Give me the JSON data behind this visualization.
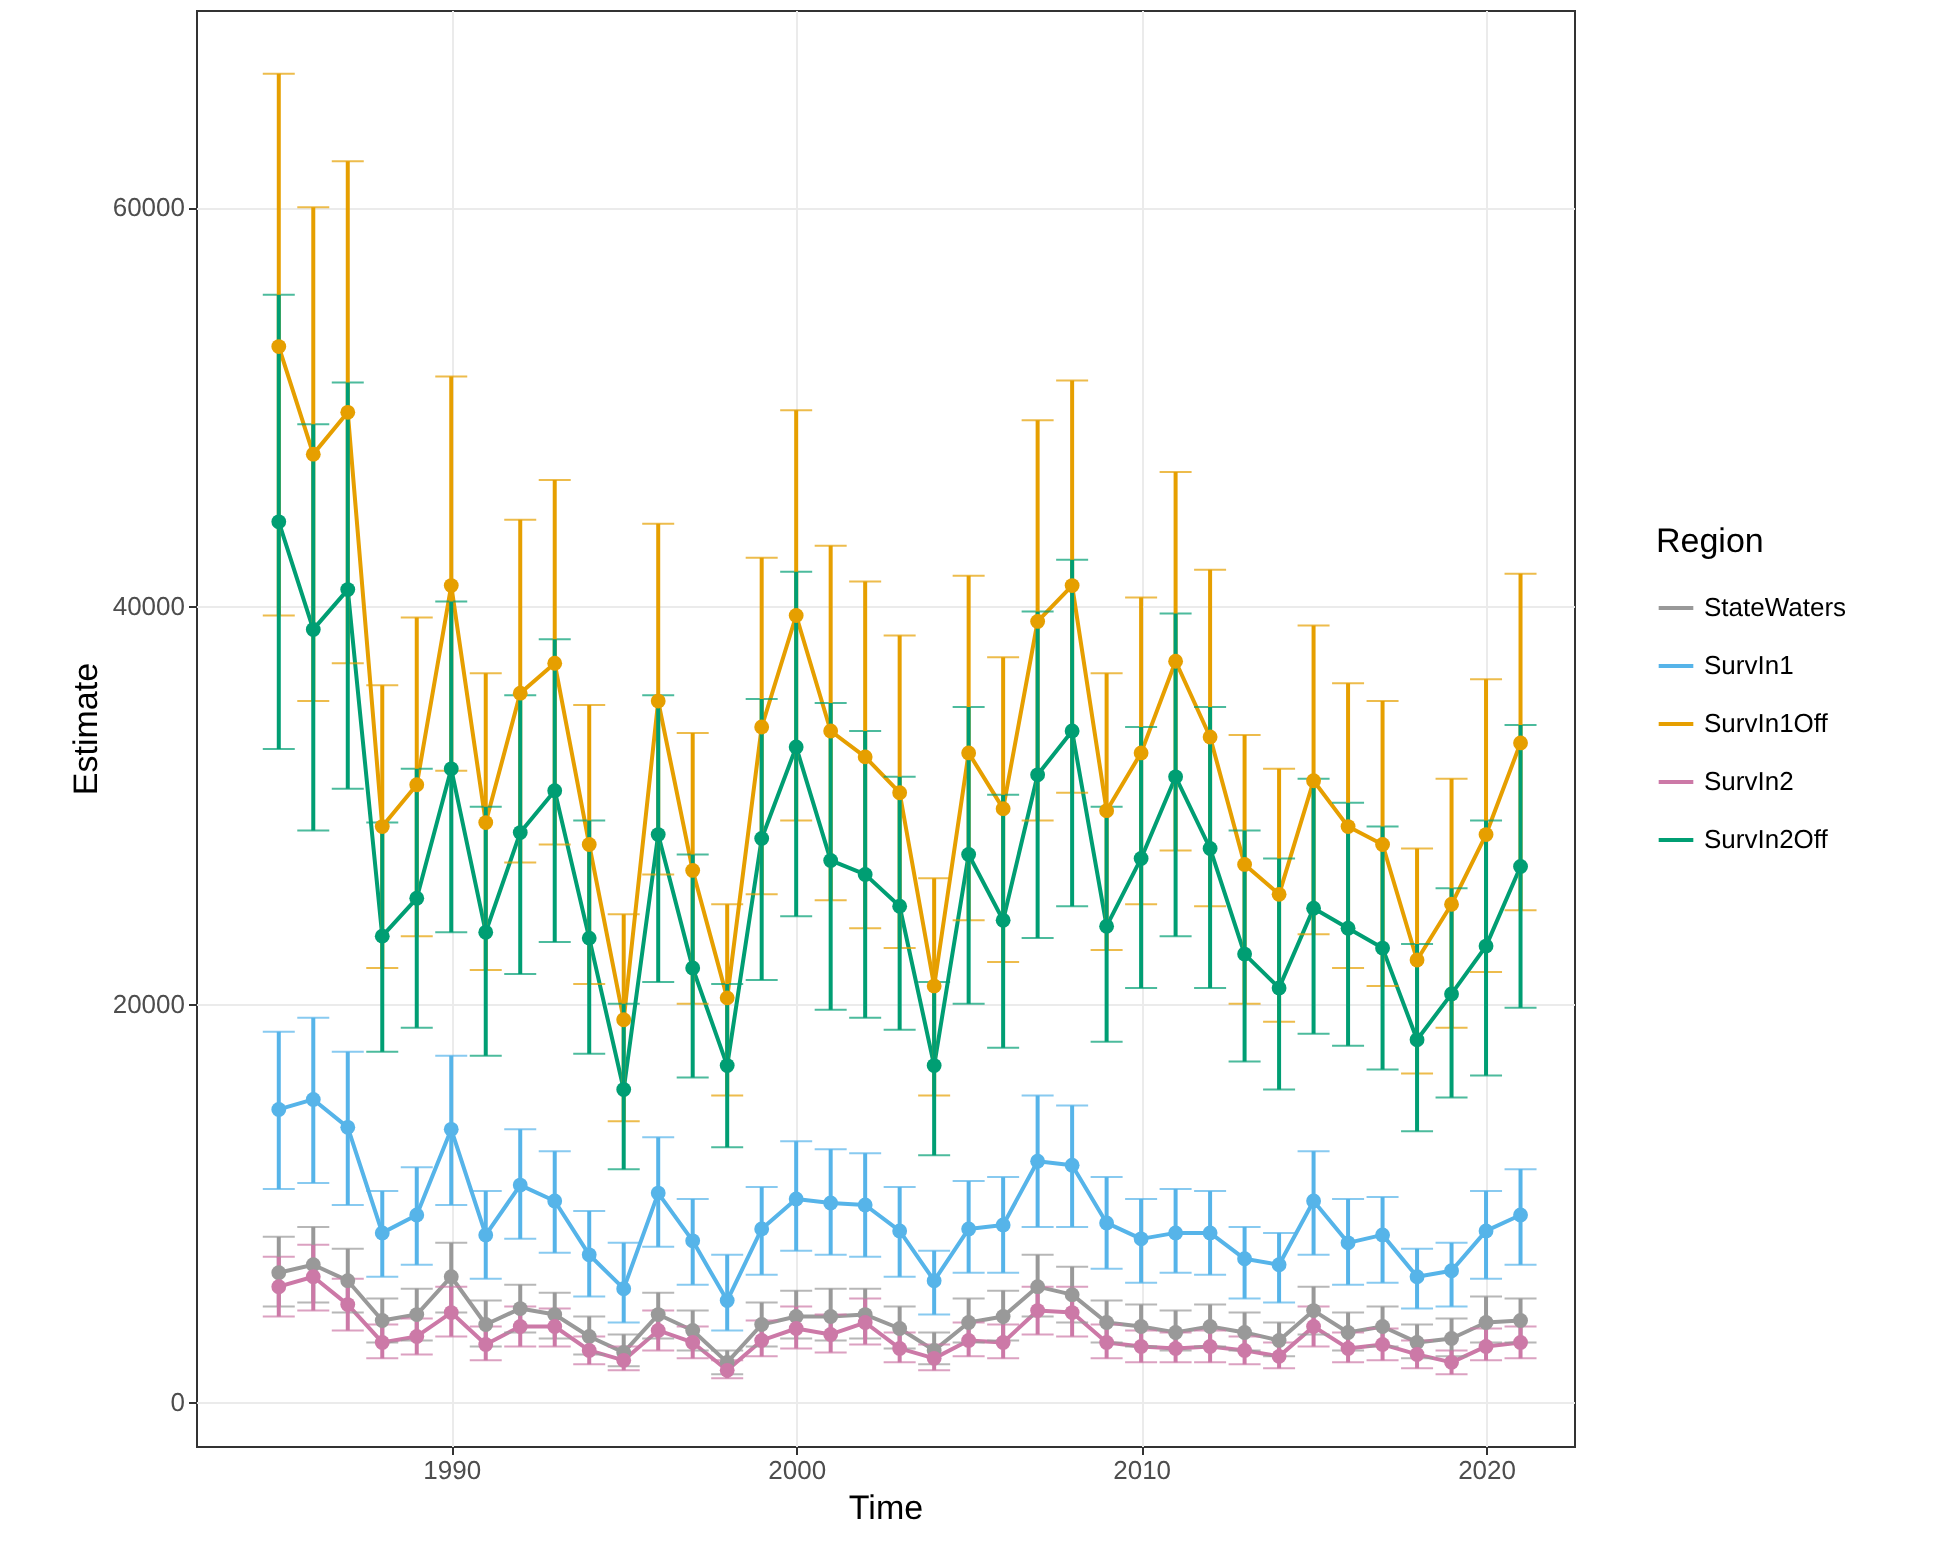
{
  "chart_data": {
    "type": "line",
    "xlabel": "Time",
    "ylabel": "Estimate",
    "legend_title": "Region",
    "legend": "right",
    "grid": true,
    "marker": "circle",
    "x": [
      1985,
      1986,
      1987,
      1988,
      1989,
      1990,
      1991,
      1992,
      1993,
      1994,
      1995,
      1996,
      1997,
      1998,
      1999,
      2000,
      2001,
      2002,
      2003,
      2004,
      2005,
      2006,
      2007,
      2008,
      2009,
      2010,
      2011,
      2012,
      2013,
      2014,
      2015,
      2016,
      2017,
      2018,
      2019,
      2020,
      2021
    ],
    "xlim": [
      1982.6,
      2022.55
    ],
    "xticks": [
      1990,
      2000,
      2010,
      2020
    ],
    "ylim": [
      -2200,
      69900
    ],
    "yticks": [
      0,
      20000,
      40000,
      60000
    ],
    "series": [
      {
        "name": "StateWaters",
        "color": "#999999",
        "values": [
          6500,
          6900,
          6100,
          4100,
          4400,
          6300,
          3900,
          4700,
          4400,
          3300,
          2500,
          4400,
          3600,
          2000,
          3900,
          4300,
          4300,
          4400,
          3700,
          2600,
          4000,
          4300,
          5800,
          5400,
          4000,
          3800,
          3500,
          3800,
          3500,
          3100,
          4600,
          3500,
          3800,
          3000,
          3200,
          4000,
          4100
        ],
        "errors": [
          [
            4800,
            8300
          ],
          [
            5000,
            8800
          ],
          [
            4500,
            7700
          ],
          [
            3000,
            5200
          ],
          [
            3100,
            5700
          ],
          [
            4500,
            8000
          ],
          [
            2800,
            5100
          ],
          [
            3500,
            5900
          ],
          [
            3200,
            5500
          ],
          [
            2400,
            4300
          ],
          [
            1800,
            3400
          ],
          [
            3200,
            5500
          ],
          [
            2600,
            4600
          ],
          [
            1400,
            2600
          ],
          [
            2800,
            5000
          ],
          [
            3200,
            5600
          ],
          [
            3100,
            5700
          ],
          [
            3200,
            5700
          ],
          [
            2700,
            4800
          ],
          [
            1900,
            3500
          ],
          [
            3000,
            5200
          ],
          [
            3100,
            5600
          ],
          [
            4300,
            7400
          ],
          [
            4000,
            6800
          ],
          [
            3000,
            5100
          ],
          [
            2800,
            4900
          ],
          [
            2600,
            4600
          ],
          [
            2800,
            4900
          ],
          [
            2600,
            4500
          ],
          [
            2300,
            4000
          ],
          [
            3400,
            5800
          ],
          [
            2600,
            4500
          ],
          [
            2800,
            4800
          ],
          [
            2200,
            3900
          ],
          [
            2300,
            4200
          ],
          [
            3000,
            5300
          ],
          [
            3000,
            5200
          ]
        ]
      },
      {
        "name": "SurvIn1",
        "color": "#56b4e9",
        "values": [
          14700,
          15200,
          13800,
          8500,
          9400,
          13700,
          8400,
          10900,
          10100,
          7400,
          5700,
          10500,
          8100,
          5100,
          8700,
          10200,
          10000,
          9900,
          8600,
          6100,
          8700,
          8900,
          12100,
          11900,
          9000,
          8200,
          8500,
          8500,
          7200,
          6900,
          10100,
          8000,
          8400,
          6300,
          6600,
          8600,
          9400
        ],
        "errors": [
          [
            10700,
            18600
          ],
          [
            11000,
            19300
          ],
          [
            9900,
            17600
          ],
          [
            6300,
            10600
          ],
          [
            6900,
            11800
          ],
          [
            9900,
            17400
          ],
          [
            6200,
            10600
          ],
          [
            8200,
            13700
          ],
          [
            7500,
            12600
          ],
          [
            5300,
            9600
          ],
          [
            4000,
            8000
          ],
          [
            7800,
            13300
          ],
          [
            5900,
            10200
          ],
          [
            3600,
            7400
          ],
          [
            6400,
            10800
          ],
          [
            7600,
            13100
          ],
          [
            7400,
            12700
          ],
          [
            7300,
            12500
          ],
          [
            6300,
            10800
          ],
          [
            4400,
            7600
          ],
          [
            6500,
            11100
          ],
          [
            6500,
            11300
          ],
          [
            8800,
            15400
          ],
          [
            8800,
            14900
          ],
          [
            6700,
            11300
          ],
          [
            6000,
            10200
          ],
          [
            6500,
            10700
          ],
          [
            6400,
            10600
          ],
          [
            5200,
            8800
          ],
          [
            5000,
            8500
          ],
          [
            7400,
            12600
          ],
          [
            5900,
            10200
          ],
          [
            6000,
            10300
          ],
          [
            4700,
            7700
          ],
          [
            4800,
            8000
          ],
          [
            6200,
            10600
          ],
          [
            6900,
            11700
          ]
        ]
      },
      {
        "name": "SurvIn1Off",
        "color": "#e69f00",
        "values": [
          53000,
          47600,
          49700,
          28900,
          31000,
          41000,
          29100,
          35600,
          37100,
          28000,
          19200,
          35200,
          26700,
          20300,
          33900,
          39500,
          33700,
          32400,
          30600,
          20900,
          32600,
          29800,
          39200,
          41000,
          29700,
          32600,
          37200,
          33400,
          27000,
          25500,
          31200,
          28900,
          28000,
          22200,
          25000,
          28500,
          33100
        ],
        "errors": [
          [
            39500,
            66700
          ],
          [
            35200,
            60000
          ],
          [
            37100,
            62300
          ],
          [
            21800,
            36000
          ],
          [
            23400,
            39400
          ],
          [
            31700,
            51500
          ],
          [
            21700,
            36600
          ],
          [
            27100,
            44300
          ],
          [
            28000,
            46300
          ],
          [
            21000,
            35000
          ],
          [
            14100,
            24500
          ],
          [
            26500,
            44100
          ],
          [
            20000,
            33600
          ],
          [
            15400,
            25000
          ],
          [
            25500,
            42400
          ],
          [
            29200,
            49800
          ],
          [
            25200,
            43000
          ],
          [
            23800,
            41200
          ],
          [
            22800,
            38500
          ],
          [
            15400,
            26300
          ],
          [
            24200,
            41500
          ],
          [
            22100,
            37400
          ],
          [
            29200,
            49300
          ],
          [
            30600,
            51300
          ],
          [
            22700,
            36600
          ],
          [
            25000,
            40400
          ],
          [
            27700,
            46700
          ],
          [
            24900,
            41800
          ],
          [
            20000,
            33500
          ],
          [
            19100,
            31800
          ],
          [
            23500,
            39000
          ],
          [
            21800,
            36100
          ],
          [
            20900,
            35200
          ],
          [
            16500,
            27800
          ],
          [
            18800,
            31300
          ],
          [
            21600,
            36300
          ],
          [
            24700,
            41600
          ]
        ]
      },
      {
        "name": "SurvIn2",
        "color": "#cc79a7",
        "values": [
          5800,
          6300,
          4900,
          3000,
          3300,
          4500,
          2900,
          3800,
          3800,
          2600,
          2100,
          3600,
          3000,
          1600,
          3100,
          3700,
          3400,
          4000,
          2700,
          2200,
          3100,
          3000,
          4600,
          4500,
          3000,
          2800,
          2700,
          2800,
          2600,
          2300,
          3800,
          2700,
          2900,
          2400,
          2000,
          2800,
          3000
        ],
        "errors": [
          [
            4300,
            7300
          ],
          [
            4600,
            7900
          ],
          [
            3600,
            6200
          ],
          [
            2200,
            3900
          ],
          [
            2400,
            4200
          ],
          [
            3300,
            5800
          ],
          [
            2100,
            3800
          ],
          [
            2800,
            4800
          ],
          [
            2800,
            4700
          ],
          [
            1900,
            3300
          ],
          [
            1600,
            2800
          ],
          [
            2600,
            4600
          ],
          [
            2200,
            3800
          ],
          [
            1200,
            2100
          ],
          [
            2300,
            4100
          ],
          [
            2700,
            4800
          ],
          [
            2500,
            4400
          ],
          [
            2900,
            5200
          ],
          [
            2000,
            3500
          ],
          [
            1600,
            2900
          ],
          [
            2300,
            4000
          ],
          [
            2200,
            3900
          ],
          [
            3400,
            5800
          ],
          [
            3300,
            5800
          ],
          [
            2200,
            3900
          ],
          [
            2000,
            3600
          ],
          [
            2000,
            3500
          ],
          [
            2000,
            3600
          ],
          [
            1900,
            3300
          ],
          [
            1700,
            3000
          ],
          [
            2800,
            4800
          ],
          [
            2000,
            3500
          ],
          [
            2100,
            3700
          ],
          [
            1700,
            3100
          ],
          [
            1400,
            2600
          ],
          [
            2100,
            3700
          ],
          [
            2200,
            3800
          ]
        ]
      },
      {
        "name": "SurvIn2Off",
        "color": "#009e73",
        "values": [
          44200,
          38800,
          40800,
          23400,
          25300,
          31800,
          23600,
          28600,
          30700,
          23300,
          15700,
          28500,
          21800,
          16900,
          28300,
          32900,
          27200,
          26500,
          24900,
          16900,
          27500,
          24200,
          31500,
          33700,
          23900,
          27300,
          31400,
          27800,
          22500,
          20800,
          24800,
          23800,
          22800,
          18200,
          20500,
          22900,
          26900
        ],
        "errors": [
          [
            32800,
            55600
          ],
          [
            28700,
            49100
          ],
          [
            30800,
            51200
          ],
          [
            17600,
            29100
          ],
          [
            18800,
            31800
          ],
          [
            23600,
            40200
          ],
          [
            17400,
            29900
          ],
          [
            21500,
            35500
          ],
          [
            23100,
            38300
          ],
          [
            17500,
            29200
          ],
          [
            11700,
            20000
          ],
          [
            21100,
            35500
          ],
          [
            16300,
            27500
          ],
          [
            12800,
            21000
          ],
          [
            21200,
            35300
          ],
          [
            24400,
            41700
          ],
          [
            19700,
            35100
          ],
          [
            19300,
            33700
          ],
          [
            18700,
            31400
          ],
          [
            12400,
            21100
          ],
          [
            20000,
            34900
          ],
          [
            17800,
            30500
          ],
          [
            23300,
            39700
          ],
          [
            24900,
            42300
          ],
          [
            18100,
            29900
          ],
          [
            20800,
            33900
          ],
          [
            23400,
            39600
          ],
          [
            20800,
            34900
          ],
          [
            17100,
            28700
          ],
          [
            15700,
            27300
          ],
          [
            18500,
            31300
          ],
          [
            17900,
            30100
          ],
          [
            16700,
            28900
          ],
          [
            13600,
            23000
          ],
          [
            15300,
            25800
          ],
          [
            16400,
            29200
          ],
          [
            19800,
            34000
          ]
        ]
      }
    ]
  }
}
